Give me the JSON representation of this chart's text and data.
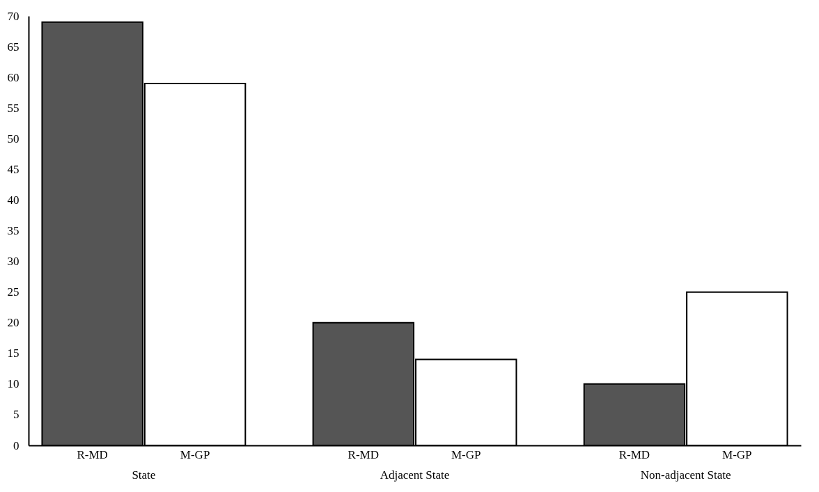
{
  "chart_data": {
    "type": "bar",
    "categories": [
      "State",
      "Adjacent State",
      "Non-adjacent State"
    ],
    "series": [
      {
        "name": "R-MD",
        "color": "#555555",
        "values": [
          69,
          20,
          10
        ]
      },
      {
        "name": "M-GP",
        "color": "#ffffff",
        "values": [
          59,
          14,
          25
        ]
      }
    ],
    "ylim": [
      0,
      70
    ],
    "yticks": [
      0,
      5,
      10,
      15,
      20,
      25,
      30,
      35,
      40,
      45,
      50,
      55,
      60,
      65,
      70
    ],
    "grid": false
  }
}
